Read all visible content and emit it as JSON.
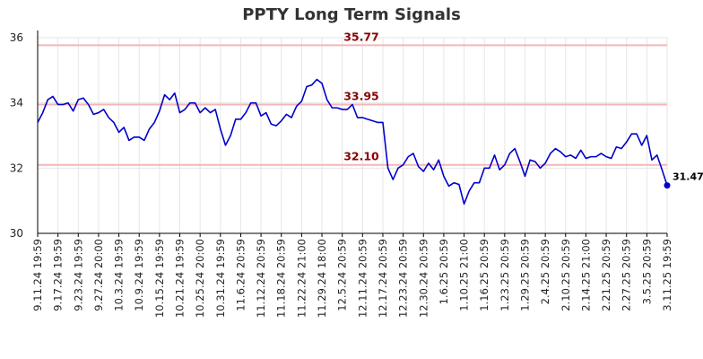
{
  "chart_data": {
    "type": "line",
    "title": "PPTY Long Term Signals",
    "xlabel": "",
    "ylabel": "",
    "ylim": [
      30,
      36
    ],
    "yticks": [
      30,
      32,
      34,
      36
    ],
    "grid": true,
    "line_color": "#0000cc",
    "level_color": "#f4b6b6",
    "level_label_color": "#8b0000",
    "xtick_labels": [
      "9.11.24 19:59",
      "9.17.24 19:59",
      "9.23.24 19:59",
      "9.27.24 20:00",
      "10.3.24 19:59",
      "10.9.24 19:59",
      "10.15.24 19:59",
      "10.21.24 19:59",
      "10.25.24 20:00",
      "10.31.24 19:59",
      "11.6.24 20:59",
      "11.12.24 20:59",
      "11.18.24 20:59",
      "11.22.24 21:00",
      "11.29.24 18:00",
      "12.5.24 20:59",
      "12.11.24 20:59",
      "12.17.24 20:59",
      "12.23.24 20:59",
      "12.30.24 20:59",
      "1.6.25 20:59",
      "1.10.25 21:00",
      "1.16.25 20:59",
      "1.23.25 20:59",
      "1.29.25 20:59",
      "2.4.25 20:59",
      "2.10.25 20:59",
      "2.14.25 21:00",
      "2.21.25 20:59",
      "2.27.25 20:59",
      "3.5.25 20:59",
      "3.11.25 19:59"
    ],
    "levels": [
      {
        "value": 35.77,
        "label": "35.77"
      },
      {
        "value": 33.95,
        "label": "33.95"
      },
      {
        "value": 32.1,
        "label": "32.10"
      }
    ],
    "last_value_label": "31.47",
    "series": [
      {
        "values": [
          33.4,
          33.7,
          34.1,
          34.2,
          33.95,
          33.95,
          34.0,
          33.75,
          34.1,
          34.15,
          33.95,
          33.65,
          33.7,
          33.8,
          33.55,
          33.4,
          33.1,
          33.25,
          32.85,
          32.95,
          32.95,
          32.85,
          33.2,
          33.4,
          33.75,
          34.25,
          34.1,
          34.3,
          33.7,
          33.8,
          34.0,
          34.0,
          33.7,
          33.85,
          33.7,
          33.8,
          33.2,
          32.7,
          33.0,
          33.5,
          33.5,
          33.7,
          34.0,
          34.0,
          33.6,
          33.7,
          33.35,
          33.3,
          33.45,
          33.65,
          33.55,
          33.9,
          34.05,
          34.5,
          34.55,
          34.72,
          34.6,
          34.1,
          33.85,
          33.85,
          33.8,
          33.8,
          33.95,
          33.55,
          33.55,
          33.5,
          33.45,
          33.4,
          33.4,
          32.0,
          31.65,
          32.0,
          32.1,
          32.35,
          32.45,
          32.05,
          31.9,
          32.15,
          31.95,
          32.25,
          31.75,
          31.45,
          31.55,
          31.5,
          30.9,
          31.3,
          31.55,
          31.55,
          32.0,
          32.0,
          32.4,
          31.95,
          32.1,
          32.45,
          32.6,
          32.2,
          31.75,
          32.25,
          32.2,
          32.0,
          32.15,
          32.45,
          32.6,
          32.5,
          32.35,
          32.4,
          32.3,
          32.55,
          32.3,
          32.35,
          32.35,
          32.45,
          32.35,
          32.3,
          32.65,
          32.6,
          32.8,
          33.05,
          33.05,
          32.7,
          33.0,
          32.25,
          32.4,
          31.95,
          31.47
        ]
      }
    ]
  }
}
